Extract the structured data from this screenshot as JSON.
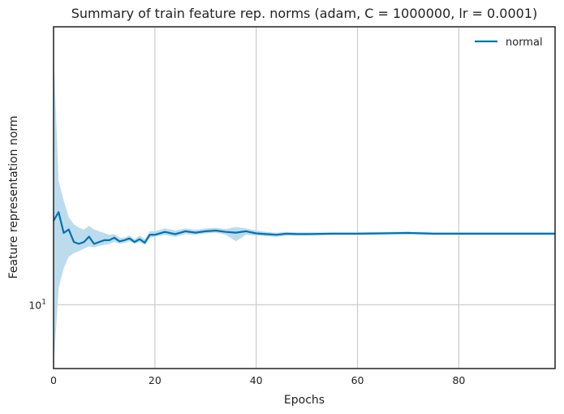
{
  "chart_data": {
    "type": "line",
    "title": "Summary of train feature rep. norms (adam, C = 1000000, lr = 0.0001)",
    "xlabel": "Epochs",
    "ylabel": "Feature representation norm",
    "xlim": [
      0,
      99
    ],
    "ylim": [
      8.6,
      19.3
    ],
    "y_scale": "log",
    "x_ticks": [
      0,
      20,
      40,
      60,
      80
    ],
    "y_ticks": [
      {
        "value": 10,
        "base": "10",
        "exp": "1"
      }
    ],
    "grid": true,
    "legend_position": "top-right",
    "colors": {
      "line": "#0072b2",
      "band": "#bcdcee",
      "grid": "#cfcfcf",
      "frame": "#222222"
    },
    "series": [
      {
        "name": "normal",
        "x": [
          0,
          1,
          2,
          3,
          4,
          5,
          6,
          7,
          8,
          9,
          10,
          11,
          12,
          13,
          14,
          15,
          16,
          17,
          18,
          19,
          20,
          22,
          24,
          26,
          28,
          30,
          32,
          34,
          36,
          38,
          40,
          42,
          44,
          46,
          48,
          50,
          55,
          60,
          65,
          70,
          75,
          80,
          85,
          90,
          95,
          99
        ],
        "values": [
          12.2,
          12.45,
          11.85,
          11.95,
          11.6,
          11.55,
          11.6,
          11.75,
          11.55,
          11.6,
          11.65,
          11.65,
          11.72,
          11.62,
          11.65,
          11.7,
          11.6,
          11.68,
          11.58,
          11.8,
          11.8,
          11.88,
          11.82,
          11.9,
          11.86,
          11.9,
          11.92,
          11.88,
          11.86,
          11.9,
          11.84,
          11.82,
          11.8,
          11.83,
          11.82,
          11.82,
          11.83,
          11.83,
          11.84,
          11.85,
          11.83,
          11.83,
          11.83,
          11.83,
          11.83,
          11.83
        ],
        "lower": [
          8.6,
          10.4,
          10.9,
          11.2,
          11.3,
          11.35,
          11.42,
          11.48,
          11.45,
          11.5,
          11.52,
          11.55,
          11.6,
          11.55,
          11.58,
          11.62,
          11.55,
          11.6,
          11.52,
          11.72,
          11.74,
          11.8,
          11.74,
          11.82,
          11.8,
          11.84,
          11.86,
          11.8,
          11.62,
          11.8,
          11.78,
          11.76,
          11.74,
          11.78,
          11.78,
          11.78,
          11.8,
          11.8,
          11.81,
          11.82,
          11.8,
          11.8,
          11.8,
          11.8,
          11.8,
          11.8
        ],
        "upper": [
          18.2,
          13.4,
          12.8,
          12.3,
          12.1,
          12.0,
          11.95,
          12.05,
          11.95,
          11.9,
          11.85,
          11.8,
          11.82,
          11.72,
          11.72,
          11.78,
          11.68,
          11.78,
          11.68,
          11.9,
          11.9,
          11.98,
          11.92,
          11.98,
          11.94,
          11.98,
          12.0,
          11.96,
          12.02,
          11.98,
          11.92,
          11.88,
          11.86,
          11.88,
          11.87,
          11.87,
          11.87,
          11.87,
          11.88,
          11.89,
          11.87,
          11.87,
          11.87,
          11.87,
          11.87,
          11.87
        ]
      }
    ]
  }
}
